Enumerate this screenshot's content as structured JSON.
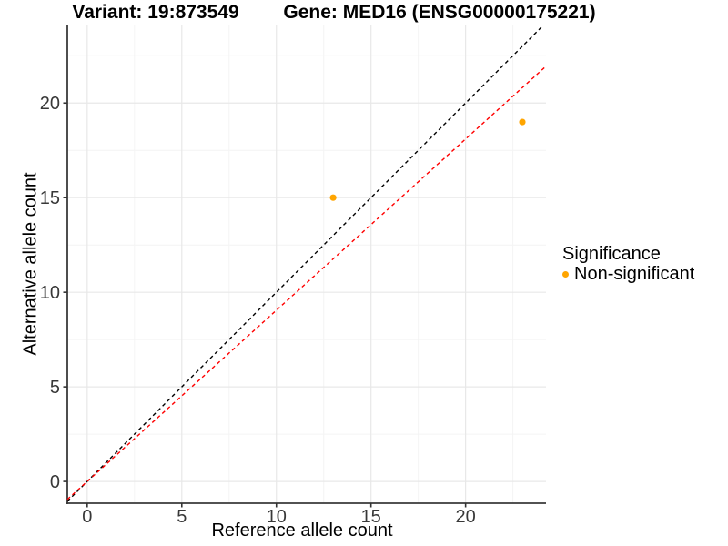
{
  "chart_data": {
    "type": "scatter",
    "titles": {
      "left": "Variant: 19:873549",
      "right": "Gene: MED16 (ENSG00000175221)"
    },
    "xlabel": "Reference allele count",
    "ylabel": "Alternative allele count",
    "x_ticks": [
      0,
      5,
      10,
      15,
      20
    ],
    "y_ticks": [
      0,
      5,
      10,
      15,
      20
    ],
    "minor_gridlines": [
      2.5,
      7.5,
      12.5,
      17.5,
      22.5
    ],
    "xlim": [
      -1.05,
      24.25
    ],
    "ylim": [
      -1.15,
      24.1
    ],
    "grid": true,
    "legend": {
      "position": "right",
      "title": "Significance",
      "items": [
        {
          "label": "Non-significant",
          "color": "#FFA500"
        }
      ]
    },
    "series": [
      {
        "name": "Non-significant",
        "color": "#FFA500",
        "points": [
          {
            "x": 13,
            "y": 15
          },
          {
            "x": 23,
            "y": 19
          }
        ]
      }
    ],
    "reference_lines": [
      {
        "name": "identity-line",
        "slope": 1,
        "intercept": 0,
        "color": "#000000",
        "style": "dashed"
      },
      {
        "name": "fitted-ratio-line",
        "slope": 0.905,
        "intercept": 0,
        "color": "#FF0000",
        "style": "dashed"
      }
    ],
    "style": {
      "grid_major_color": "#e8e8e8",
      "grid_minor_color": "#f4f4f4",
      "axis_line_color": "#3a3a3a",
      "tick_color": "#333333",
      "tick_text_color": "#383838",
      "background": "#ffffff"
    }
  }
}
